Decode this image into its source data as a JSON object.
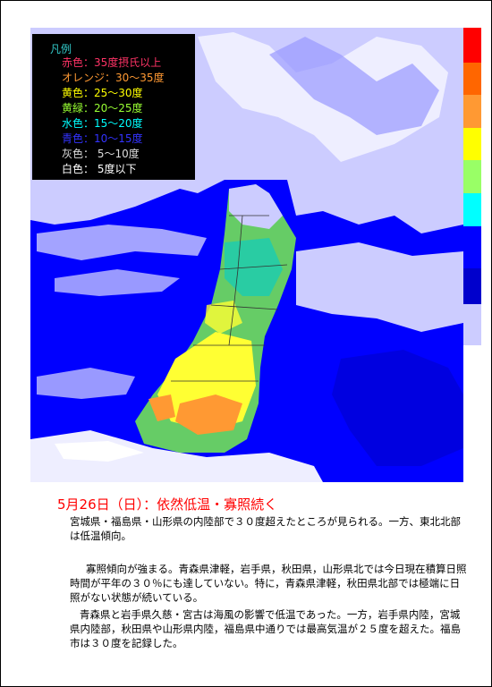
{
  "legend": {
    "title": "凡例",
    "items": [
      {
        "text": "赤色：35度摂氏以上",
        "color": "#ff3366"
      },
      {
        "text": "オレンジ：30～35度",
        "color": "#ff9933"
      },
      {
        "text": "黄色：25～30度",
        "color": "#ffff00"
      },
      {
        "text": "黄緑：20～25度",
        "color": "#99ff33"
      },
      {
        "text": "水色：15～20度",
        "color": "#00ffff"
      },
      {
        "text": "青色：10～15度",
        "color": "#3333ff"
      },
      {
        "text": "灰色： 5～10度",
        "color": "#dddddd"
      },
      {
        "text": "白色： 5度以下",
        "color": "#ffffff"
      }
    ]
  },
  "report": {
    "title": "5月26日（日）：依然低温・寡照続く",
    "paragraphs": [
      "宮城県・福島県・山形県の内陸部で３０度超えたところが見られる。一方、東北北部は低温傾向。",
      "寡照傾向が強まる。青森県津軽，岩手県，秋田県，山形県北では今日現在積算日照時間が平年の３０％にも達していない。特に，青森県津軽，秋田県北部では極端に日照がない状態が続いている。",
      "青森県と岩手県久慈・宮古は海風の影響で低温であった。一方，岩手県内陸，宮城県内陸部，秋田県や山形県内陸，福島県中通りでは最高気温が２５度を超えた。福島市は３０度を記録した。"
    ]
  }
}
